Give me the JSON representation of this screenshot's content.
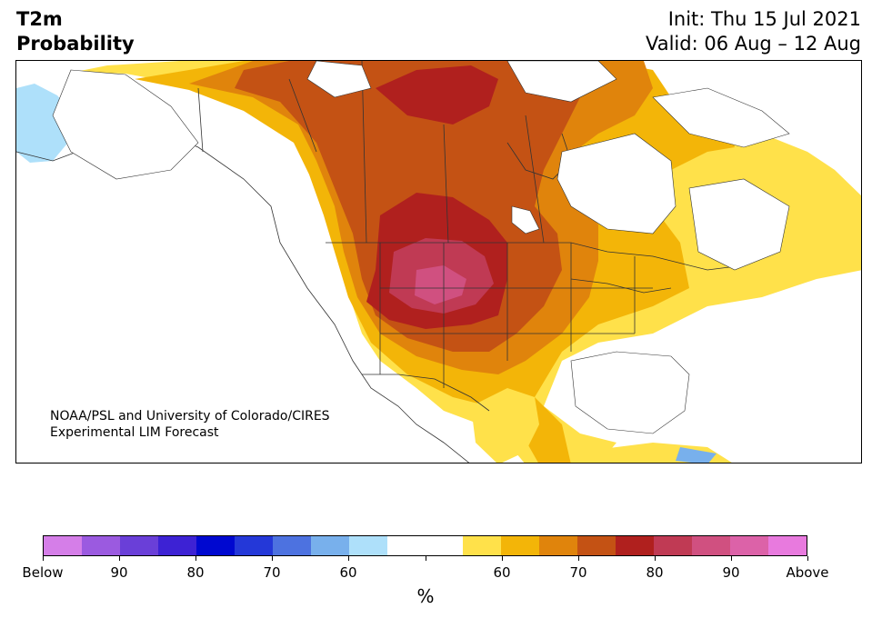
{
  "header": {
    "variable": "T2m",
    "product": "Probability",
    "init": "Init: Thu 15 Jul 2021",
    "valid": "Valid: 06 Aug – 12 Aug"
  },
  "credit": {
    "line1": "NOAA/PSL and University of Colorado/CIRES",
    "line2": "Experimental LIM Forecast"
  },
  "colorbar": {
    "unit": "%",
    "colors": [
      "#d57ee8",
      "#9b5ae0",
      "#6a3fd8",
      "#3d22d4",
      "#0008d0",
      "#2438d8",
      "#4d72e0",
      "#78b0ec",
      "#aee0fa",
      "#ffffff",
      "#ffffff",
      "#ffe14a",
      "#f3b508",
      "#e0840c",
      "#c45214",
      "#b0201e",
      "#c03a54",
      "#d05080",
      "#dc62a8",
      "#e87ade"
    ],
    "tick_labels": [
      "Below",
      "90",
      "80",
      "70",
      "60",
      "",
      "60",
      "70",
      "80",
      "90",
      "Above"
    ]
  },
  "map_colors": {
    "p55": "#ffe14a",
    "p60": "#f3b508",
    "p65": "#e0840c",
    "p70": "#c45214",
    "p75": "#b0201e",
    "p80": "#c03a54",
    "p85": "#d05080",
    "below55": "#aee0fa",
    "below60": "#78b0ec"
  }
}
